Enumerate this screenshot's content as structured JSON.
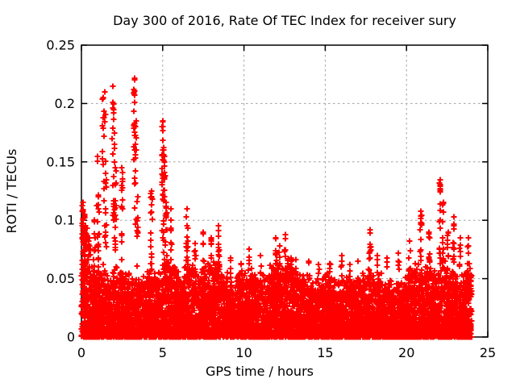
{
  "chart_data": {
    "type": "scatter",
    "title": "Day 300 of 2016, Rate Of TEC Index for receiver sury",
    "xlabel": "GPS time / hours",
    "ylabel": "ROTI / TECUs",
    "xlim": [
      0,
      25
    ],
    "ylim": [
      0,
      0.25
    ],
    "xticks": [
      0,
      5,
      10,
      15,
      20,
      25
    ],
    "xtick_labels": [
      "0",
      "5",
      "10",
      "15",
      "20",
      "25"
    ],
    "yticks": [
      0,
      0.05,
      0.1,
      0.15,
      0.2,
      0.25
    ],
    "ytick_labels": [
      "0",
      "0.05",
      "0.1",
      "0.15",
      "0.2",
      "0.25"
    ],
    "grid": true,
    "legend": "none",
    "marker": "plus-cross",
    "colors": {
      "marker": "#ff0000",
      "grid": "#a0a0a0",
      "border": "#000000",
      "text": "#000000",
      "background": "#ffffff"
    },
    "x_data_range": [
      0,
      24
    ],
    "point_cloud": {
      "description": "Dense band of ROTI values 0-0.06 TECUs across all 24 hours with intermittent vertical spike clusters; strongest activity 0-5.5 h (max ~0.22 TECUs near 3.3 h) and 20.5-24 h (max ~0.135 TECUs near 22 h); quieter midday 9-20 h with spikes mostly below 0.09.",
      "bin_hours": 0.5,
      "points_per_bin": 170,
      "band_top_per_bin": [
        0.065,
        0.055,
        0.055,
        0.05,
        0.055,
        0.05,
        0.05,
        0.048,
        0.052,
        0.05,
        0.065,
        0.06,
        0.055,
        0.06,
        0.052,
        0.058,
        0.058,
        0.052,
        0.042,
        0.055,
        0.052,
        0.048,
        0.048,
        0.055,
        0.058,
        0.062,
        0.052,
        0.048,
        0.044,
        0.048,
        0.05,
        0.044,
        0.048,
        0.044,
        0.05,
        0.055,
        0.048,
        0.044,
        0.044,
        0.048,
        0.052,
        0.058,
        0.058,
        0.052,
        0.058,
        0.052,
        0.048,
        0.055
      ],
      "spike_fields": [
        "hour",
        "roti_max",
        "width_hours",
        "n_points"
      ],
      "spikes": [
        [
          0.12,
          0.115,
          0.18,
          45
        ],
        [
          0.25,
          0.095,
          0.15,
          30
        ],
        [
          0.5,
          0.085,
          0.12,
          15
        ],
        [
          0.8,
          0.1,
          0.1,
          12
        ],
        [
          1.0,
          0.155,
          0.08,
          8
        ],
        [
          1.05,
          0.12,
          0.1,
          12
        ],
        [
          1.35,
          0.205,
          0.1,
          14
        ],
        [
          1.45,
          0.21,
          0.08,
          6
        ],
        [
          1.5,
          0.14,
          0.1,
          12
        ],
        [
          1.95,
          0.215,
          0.1,
          18
        ],
        [
          2.05,
          0.175,
          0.08,
          10
        ],
        [
          2.1,
          0.145,
          0.1,
          12
        ],
        [
          2.5,
          0.145,
          0.1,
          15
        ],
        [
          3.25,
          0.222,
          0.1,
          22
        ],
        [
          3.35,
          0.185,
          0.08,
          12
        ],
        [
          3.45,
          0.12,
          0.08,
          10
        ],
        [
          4.3,
          0.125,
          0.1,
          18
        ],
        [
          5.0,
          0.185,
          0.1,
          25
        ],
        [
          5.1,
          0.155,
          0.08,
          15
        ],
        [
          5.2,
          0.115,
          0.08,
          12
        ],
        [
          5.5,
          0.11,
          0.08,
          10
        ],
        [
          6.5,
          0.11,
          0.1,
          14
        ],
        [
          7.0,
          0.08,
          0.08,
          8
        ],
        [
          7.5,
          0.09,
          0.08,
          10
        ],
        [
          8.0,
          0.085,
          0.08,
          8
        ],
        [
          8.45,
          0.095,
          0.08,
          12
        ],
        [
          9.2,
          0.068,
          0.08,
          8
        ],
        [
          10.3,
          0.075,
          0.08,
          8
        ],
        [
          11.0,
          0.07,
          0.08,
          8
        ],
        [
          11.95,
          0.085,
          0.08,
          12
        ],
        [
          12.2,
          0.078,
          0.08,
          10
        ],
        [
          12.55,
          0.088,
          0.08,
          12
        ],
        [
          12.9,
          0.068,
          0.08,
          10
        ],
        [
          13.2,
          0.066,
          0.08,
          8
        ],
        [
          14.0,
          0.065,
          0.08,
          6
        ],
        [
          14.6,
          0.062,
          0.08,
          6
        ],
        [
          15.3,
          0.063,
          0.08,
          8
        ],
        [
          16.0,
          0.07,
          0.08,
          6
        ],
        [
          16.5,
          0.062,
          0.08,
          6
        ],
        [
          17.0,
          0.065,
          0.08,
          6
        ],
        [
          17.75,
          0.092,
          0.08,
          14
        ],
        [
          18.2,
          0.07,
          0.08,
          6
        ],
        [
          18.8,
          0.068,
          0.08,
          6
        ],
        [
          19.5,
          0.072,
          0.08,
          6
        ],
        [
          20.2,
          0.082,
          0.08,
          8
        ],
        [
          20.9,
          0.108,
          0.1,
          16
        ],
        [
          21.4,
          0.09,
          0.08,
          12
        ],
        [
          22.05,
          0.135,
          0.1,
          20
        ],
        [
          22.25,
          0.115,
          0.08,
          14
        ],
        [
          22.55,
          0.09,
          0.08,
          10
        ],
        [
          22.9,
          0.103,
          0.08,
          16
        ],
        [
          23.3,
          0.085,
          0.08,
          10
        ],
        [
          23.8,
          0.085,
          0.1,
          12
        ]
      ]
    }
  }
}
